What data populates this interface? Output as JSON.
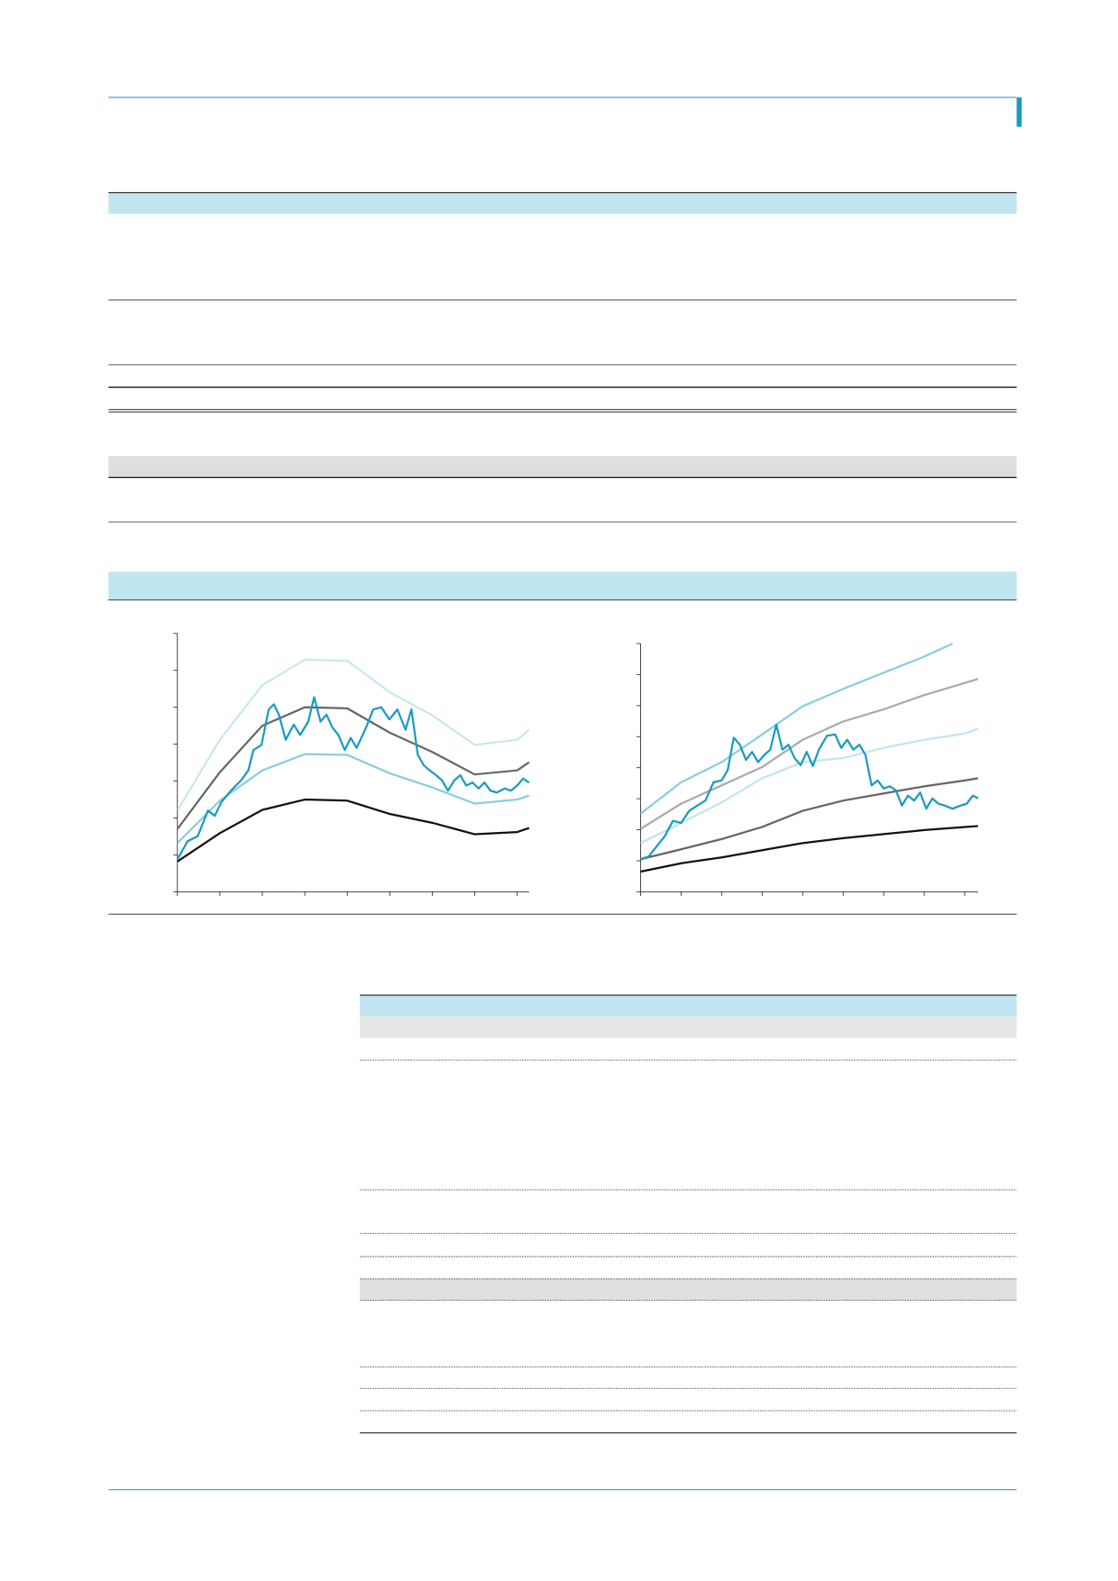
{
  "chart_data": [
    {
      "type": "line",
      "xlim": [
        0,
        8.28
      ],
      "ylim": [
        0,
        7
      ],
      "xticks": [
        0,
        1,
        2,
        3,
        4,
        5,
        6,
        7,
        8
      ],
      "yticks": [
        0,
        1,
        2,
        3,
        4,
        5,
        6,
        7
      ],
      "series": [
        {
          "color": "#c6e8f0",
          "x": [
            0,
            1,
            2,
            3,
            4,
            5,
            6,
            7,
            8,
            8.28
          ],
          "values": [
            2.2,
            4.12,
            5.6,
            6.29,
            6.26,
            5.41,
            4.78,
            3.98,
            4.12,
            4.39
          ]
        },
        {
          "color": "#666666",
          "x": [
            0,
            1,
            2,
            3,
            4,
            5,
            6,
            7,
            8,
            8.28
          ],
          "values": [
            1.7,
            3.24,
            4.5,
            5.0,
            4.97,
            4.31,
            3.79,
            3.18,
            3.29,
            3.51
          ]
        },
        {
          "color": "#86cfe0",
          "x": [
            0,
            1,
            2,
            3,
            4,
            5,
            6,
            7,
            8,
            8.28
          ],
          "values": [
            1.32,
            2.47,
            3.29,
            3.73,
            3.71,
            3.21,
            2.83,
            2.39,
            2.5,
            2.61
          ]
        },
        {
          "color": "#111111",
          "x": [
            0,
            1,
            2,
            3,
            4,
            5,
            6,
            7,
            8,
            8.28
          ],
          "values": [
            0.82,
            1.59,
            2.22,
            2.5,
            2.47,
            2.11,
            1.87,
            1.56,
            1.62,
            1.73
          ]
        },
        {
          "color": "#1a9bc2",
          "x": [
            0,
            0.24,
            0.48,
            0.72,
            0.88,
            1.03,
            1.26,
            1.5,
            1.67,
            1.79,
            1.98,
            2.15,
            2.27,
            2.39,
            2.55,
            2.74,
            2.89,
            3.08,
            3.22,
            3.37,
            3.51,
            3.65,
            3.79,
            3.94,
            4.08,
            4.22,
            4.42,
            4.61,
            4.8,
            4.99,
            5.18,
            5.37,
            5.51,
            5.66,
            5.8,
            5.94,
            6.09,
            6.23,
            6.37,
            6.52,
            6.66,
            6.8,
            6.95,
            7.09,
            7.23,
            7.37,
            7.52,
            7.71,
            7.85,
            8.0,
            8.14,
            8.28
          ],
          "values": [
            0.88,
            1.37,
            1.51,
            2.2,
            2.06,
            2.42,
            2.74,
            3.02,
            3.29,
            3.84,
            3.98,
            4.94,
            5.08,
            4.8,
            4.12,
            4.53,
            4.25,
            4.61,
            5.27,
            4.61,
            4.8,
            4.45,
            4.25,
            3.84,
            4.17,
            3.9,
            4.39,
            4.94,
            5.0,
            4.67,
            4.94,
            4.39,
            4.94,
            3.71,
            3.43,
            3.29,
            3.16,
            3.02,
            2.74,
            3.02,
            3.16,
            2.88,
            2.96,
            2.8,
            2.96,
            2.74,
            2.69,
            2.8,
            2.74,
            2.88,
            3.07,
            2.96
          ]
        }
      ]
    },
    {
      "type": "line",
      "xlim": [
        0,
        8.33
      ],
      "ylim": [
        0,
        8
      ],
      "xticks": [
        0,
        1,
        2,
        3,
        4,
        5,
        6,
        7,
        8
      ],
      "yticks": [
        0,
        1,
        2,
        3,
        4,
        5,
        6,
        7,
        8
      ],
      "series": [
        {
          "color": "#86cfe0",
          "x": [
            0,
            1,
            2,
            3,
            4,
            5,
            6,
            7,
            7.7
          ],
          "values": [
            2.52,
            3.53,
            4.18,
            5.07,
            5.98,
            6.54,
            7.06,
            7.58,
            8.0
          ]
        },
        {
          "color": "#aaaaaa",
          "x": [
            0,
            1,
            2,
            3,
            4,
            5,
            6,
            7,
            8,
            8.33
          ],
          "values": [
            2.03,
            2.84,
            3.43,
            4.02,
            4.9,
            5.49,
            5.88,
            6.34,
            6.73,
            6.86
          ]
        },
        {
          "color": "#bfe6f0",
          "x": [
            0,
            1,
            2,
            3,
            4,
            5,
            6,
            7,
            8,
            8.33
          ],
          "values": [
            1.57,
            2.22,
            2.88,
            3.66,
            4.18,
            4.31,
            4.64,
            4.9,
            5.1,
            5.26
          ]
        },
        {
          "color": "#666666",
          "x": [
            0,
            1,
            2,
            3,
            4,
            5,
            6,
            7,
            8,
            8.33
          ],
          "values": [
            1.05,
            1.37,
            1.7,
            2.09,
            2.61,
            2.94,
            3.17,
            3.4,
            3.59,
            3.66
          ]
        },
        {
          "color": "#111111",
          "x": [
            0,
            1,
            2,
            3,
            4,
            5,
            6,
            7,
            8,
            8.33
          ],
          "values": [
            0.65,
            0.92,
            1.11,
            1.34,
            1.57,
            1.73,
            1.86,
            1.99,
            2.09,
            2.12
          ]
        },
        {
          "color": "#1a9bc2",
          "x": [
            0,
            0.2,
            0.4,
            0.6,
            0.8,
            1.0,
            1.2,
            1.4,
            1.6,
            1.8,
            2.0,
            2.15,
            2.3,
            2.45,
            2.6,
            2.75,
            2.9,
            3.05,
            3.2,
            3.35,
            3.5,
            3.65,
            3.8,
            3.95,
            4.1,
            4.25,
            4.4,
            4.6,
            4.8,
            4.95,
            5.1,
            5.25,
            5.4,
            5.55,
            5.7,
            5.85,
            6.0,
            6.15,
            6.3,
            6.45,
            6.6,
            6.75,
            6.9,
            7.05,
            7.2,
            7.35,
            7.5,
            7.7,
            7.9,
            8.05,
            8.2,
            8.33
          ],
          "values": [
            1.05,
            1.14,
            1.47,
            1.8,
            2.29,
            2.22,
            2.61,
            2.78,
            2.94,
            3.53,
            3.59,
            3.92,
            4.97,
            4.74,
            4.25,
            4.51,
            4.18,
            4.41,
            4.58,
            5.39,
            4.58,
            4.74,
            4.31,
            4.08,
            4.51,
            4.05,
            4.58,
            5.03,
            5.07,
            4.64,
            4.9,
            4.58,
            4.74,
            4.41,
            3.43,
            3.59,
            3.33,
            3.4,
            3.27,
            2.78,
            3.1,
            2.94,
            3.2,
            2.68,
            3.01,
            2.84,
            2.78,
            2.68,
            2.78,
            2.84,
            3.1,
            3.01
          ]
        }
      ]
    }
  ]
}
